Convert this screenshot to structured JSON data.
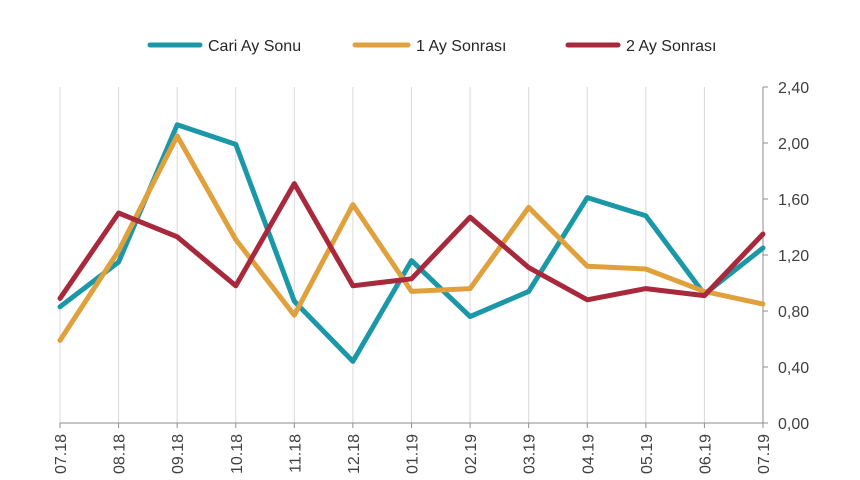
{
  "chart_data": {
    "type": "line",
    "categories": [
      "07.18",
      "08.18",
      "09.18",
      "10.18",
      "11.18",
      "12.18",
      "01.19",
      "02.19",
      "03.19",
      "04.19",
      "05.19",
      "06.19",
      "07.19"
    ],
    "series": [
      {
        "name": "Cari Ay Sonu",
        "color": "#1B98A8",
        "values": [
          0.83,
          1.15,
          2.13,
          1.99,
          0.87,
          0.44,
          1.16,
          0.76,
          0.94,
          1.61,
          1.48,
          0.92,
          1.25
        ]
      },
      {
        "name": "1 Ay Sonrası",
        "color": "#E0A03C",
        "values": [
          0.59,
          1.23,
          2.05,
          1.31,
          0.77,
          1.56,
          0.94,
          0.96,
          1.54,
          1.12,
          1.1,
          0.94,
          0.85
        ]
      },
      {
        "name": "2 Ay Sonrası",
        "color": "#A8283C",
        "values": [
          0.89,
          1.5,
          1.33,
          0.98,
          1.71,
          0.98,
          1.03,
          1.47,
          1.11,
          0.88,
          0.96,
          0.91,
          1.35
        ]
      }
    ],
    "y_ticks": [
      "0,00",
      "0,40",
      "0,80",
      "1,20",
      "1,60",
      "2,00",
      "2,40"
    ],
    "ylim": [
      0,
      2.4
    ],
    "y_axis_side": "right",
    "grid": "vertical",
    "legend_position": "top-center",
    "title": "",
    "xlabel": "",
    "ylabel": ""
  }
}
